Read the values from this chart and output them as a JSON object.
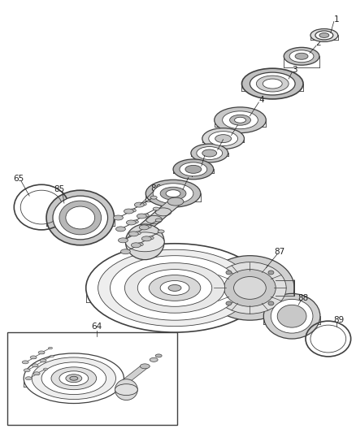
{
  "background_color": "#ffffff",
  "line_color": "#404040",
  "label_color": "#222222",
  "label_fontsize": 7.5,
  "fig_width": 4.38,
  "fig_height": 5.33,
  "dpi": 100
}
